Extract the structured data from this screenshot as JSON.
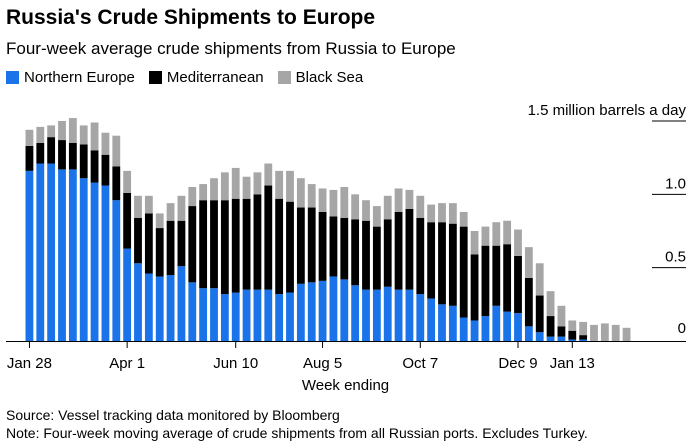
{
  "title": "Russia's Crude Shipments to Europe",
  "subtitle": "Four-week average crude shipments from Russia to Europe",
  "legend": [
    {
      "name": "Northern Europe",
      "color": "#1a73e8"
    },
    {
      "name": "Mediterranean",
      "color": "#000000"
    },
    {
      "name": "Black Sea",
      "color": "#a6a6a6"
    }
  ],
  "source": "Source: Vessel tracking data monitored by Bloomberg",
  "note": "Note: Four-week moving average of crude shipments from all Russian ports. Excludes Turkey.",
  "chart_data": {
    "type": "bar",
    "stacked": true,
    "title": "Russia's Crude Shipments to Europe",
    "subtitle": "Four-week average crude shipments from Russia to Europe",
    "xlabel": "Week ending",
    "ylabel": "",
    "unit_label": "1.5 million barrels a day",
    "ylim": [
      0,
      1.5
    ],
    "yticks": [
      {
        "value": 0,
        "label": "0"
      },
      {
        "value": 0.5,
        "label": "0.5"
      },
      {
        "value": 1.0,
        "label": "1.0"
      },
      {
        "value": 1.5,
        "label": "1.5 million barrels a day"
      }
    ],
    "x_tick_labels": [
      {
        "index": 0,
        "label": "Jan 28"
      },
      {
        "index": 9,
        "label": "Apr 1"
      },
      {
        "index": 19,
        "label": "Jun 10"
      },
      {
        "index": 27,
        "label": "Aug 5"
      },
      {
        "index": 36,
        "label": "Oct 7"
      },
      {
        "index": 45,
        "label": "Dec 9"
      },
      {
        "index": 50,
        "label": "Jan 13"
      }
    ],
    "gridlines": false,
    "legend_position": "top-left",
    "series": [
      {
        "name": "Northern Europe",
        "color": "#1a73e8",
        "values": [
          1.16,
          1.21,
          1.21,
          1.17,
          1.17,
          1.11,
          1.08,
          1.06,
          0.96,
          0.63,
          0.53,
          0.46,
          0.44,
          0.45,
          0.51,
          0.4,
          0.36,
          0.36,
          0.32,
          0.33,
          0.35,
          0.35,
          0.35,
          0.32,
          0.33,
          0.39,
          0.4,
          0.41,
          0.44,
          0.42,
          0.38,
          0.35,
          0.35,
          0.37,
          0.35,
          0.35,
          0.32,
          0.29,
          0.25,
          0.24,
          0.16,
          0.14,
          0.17,
          0.24,
          0.2,
          0.19,
          0.1,
          0.06,
          0.03,
          0.03,
          0.01,
          0.01,
          0.0,
          0.0,
          0.0,
          0.0
        ]
      },
      {
        "name": "Mediterranean",
        "color": "#000000",
        "values": [
          0.17,
          0.14,
          0.18,
          0.2,
          0.18,
          0.23,
          0.22,
          0.21,
          0.23,
          0.38,
          0.31,
          0.41,
          0.33,
          0.37,
          0.31,
          0.52,
          0.6,
          0.6,
          0.64,
          0.64,
          0.62,
          0.65,
          0.71,
          0.65,
          0.62,
          0.52,
          0.51,
          0.47,
          0.41,
          0.42,
          0.45,
          0.47,
          0.43,
          0.46,
          0.53,
          0.55,
          0.52,
          0.52,
          0.56,
          0.56,
          0.62,
          0.45,
          0.48,
          0.41,
          0.46,
          0.39,
          0.33,
          0.25,
          0.14,
          0.07,
          0.06,
          0.03,
          0.0,
          0.0,
          0.0,
          0.0
        ]
      },
      {
        "name": "Black Sea",
        "color": "#a6a6a6",
        "values": [
          0.11,
          0.11,
          0.08,
          0.13,
          0.17,
          0.13,
          0.19,
          0.15,
          0.21,
          0.15,
          0.15,
          0.12,
          0.1,
          0.12,
          0.17,
          0.13,
          0.11,
          0.15,
          0.19,
          0.21,
          0.15,
          0.15,
          0.15,
          0.19,
          0.21,
          0.2,
          0.16,
          0.16,
          0.18,
          0.21,
          0.17,
          0.14,
          0.14,
          0.16,
          0.16,
          0.13,
          0.15,
          0.12,
          0.13,
          0.14,
          0.1,
          0.16,
          0.13,
          0.16,
          0.16,
          0.18,
          0.21,
          0.22,
          0.17,
          0.14,
          0.07,
          0.09,
          0.11,
          0.12,
          0.11,
          0.09
        ]
      }
    ]
  }
}
